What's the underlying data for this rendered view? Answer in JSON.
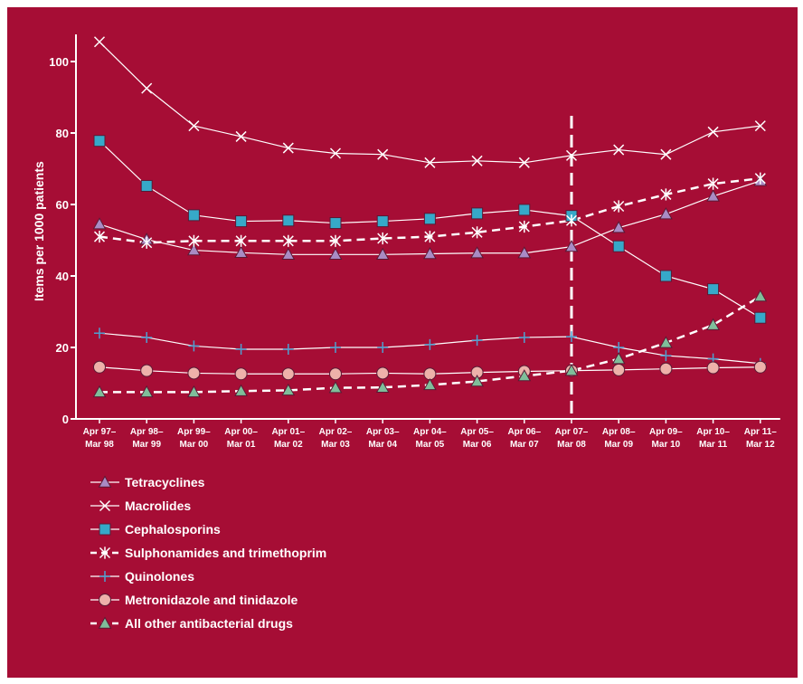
{
  "chart_data": {
    "type": "line",
    "title": "",
    "xlabel": "",
    "ylabel": "Items per 1000 patients",
    "ylim": [
      0,
      105
    ],
    "yticks": [
      0,
      20,
      40,
      60,
      80,
      100
    ],
    "categories": [
      [
        "Apr 97–",
        "Mar 98"
      ],
      [
        "Apr 98–",
        "Mar 99"
      ],
      [
        "Apr 99–",
        "Mar 00"
      ],
      [
        "Apr 00–",
        "Mar 01"
      ],
      [
        "Apr 01–",
        "Mar 02"
      ],
      [
        "Apr 02–",
        "Mar 03"
      ],
      [
        "Apr 03–",
        "Mar 04"
      ],
      [
        "Apr 04–",
        "Mar 05"
      ],
      [
        "Apr 05–",
        "Mar 06"
      ],
      [
        "Apr 06–",
        "Mar 07"
      ],
      [
        "Apr 07–",
        "Mar 08"
      ],
      [
        "Apr 08–",
        "Mar 09"
      ],
      [
        "Apr 09–",
        "Mar 10"
      ],
      [
        "Apr 10–",
        "Mar 11"
      ],
      [
        "Apr 11–",
        "Mar 12"
      ]
    ],
    "reference_line": {
      "category_index": 10,
      "style": "dashed"
    },
    "grid": false,
    "legend_position": "bottom-left",
    "series": [
      {
        "name": "Tetracyclines",
        "marker": "triangle",
        "marker_color": "#a98bc4",
        "dashed": false,
        "values": [
          54.5,
          50.2,
          47.2,
          46.5,
          46,
          46,
          46,
          46.2,
          46.4,
          46.4,
          48.2,
          53.5,
          57.3,
          62.3,
          66.6
        ]
      },
      {
        "name": "Macrolides",
        "marker": "x",
        "marker_color": "#ffffff",
        "dashed": false,
        "values": [
          105.5,
          92.5,
          82,
          79,
          75.8,
          74.3,
          74,
          71.7,
          72.2,
          71.7,
          73.7,
          75.3,
          74,
          80.3,
          82
        ]
      },
      {
        "name": "Cephalosporins",
        "marker": "square",
        "marker_color": "#36a9c9",
        "dashed": false,
        "values": [
          77.8,
          65.2,
          57,
          55.3,
          55.5,
          54.8,
          55.3,
          56,
          57.5,
          58.5,
          56.8,
          48.3,
          40,
          36.3,
          28.3
        ]
      },
      {
        "name": "Sulphonamides and trimethoprim",
        "marker": "asterisk",
        "marker_color": "#ffffff",
        "dashed": true,
        "values": [
          51,
          49.3,
          49.8,
          49.8,
          49.8,
          49.8,
          50.5,
          51,
          52.2,
          53.8,
          55.5,
          59.5,
          62.8,
          65.8,
          67.3
        ]
      },
      {
        "name": "Quinolones",
        "marker": "plus",
        "marker_color": "#4f9fd0",
        "dashed": false,
        "values": [
          24,
          22.8,
          20.4,
          19.5,
          19.5,
          20,
          20,
          20.8,
          22,
          22.8,
          23,
          20,
          17.7,
          16.8,
          15.5
        ]
      },
      {
        "name": "Metronidazole and tinidazole",
        "marker": "circle",
        "marker_color": "#eeb1aa",
        "dashed": false,
        "values": [
          14.5,
          13.5,
          12.8,
          12.6,
          12.6,
          12.6,
          12.8,
          12.6,
          13,
          13.3,
          13.5,
          13.7,
          14,
          14.3,
          14.5
        ]
      },
      {
        "name": "All other antibacterial drugs",
        "marker": "triangle",
        "marker_color": "#7fbe9a",
        "dashed": true,
        "values": [
          7.5,
          7.5,
          7.5,
          7.8,
          8,
          8.7,
          8.8,
          9.5,
          10.5,
          12,
          13.5,
          16.8,
          21.3,
          26.3,
          34.3
        ]
      }
    ]
  }
}
